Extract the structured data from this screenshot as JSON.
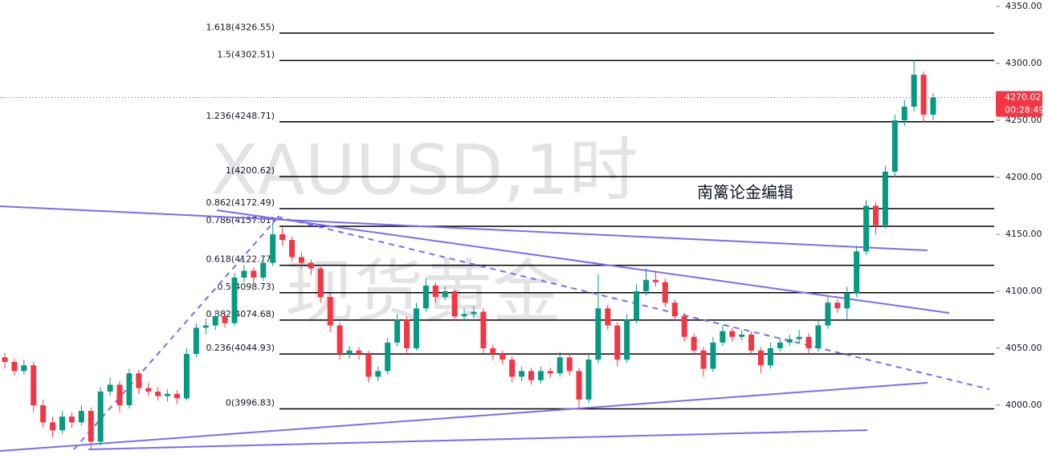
{
  "chart_data": {
    "type": "candlestick",
    "watermark": [
      "XAUUSD,1时",
      "现货黄金"
    ],
    "annotation": "南篱论金编辑",
    "up_color": "#089981",
    "down_color": "#f23645",
    "ylim": [
      3952.8,
      4355.6
    ],
    "yticks": [
      {
        "value": 4000,
        "label": "4000.00"
      },
      {
        "value": 4050,
        "label": "4050.00"
      },
      {
        "value": 4100,
        "label": "4100.00"
      },
      {
        "value": 4150,
        "label": "4150.00"
      },
      {
        "value": 4200,
        "label": "4200.00"
      },
      {
        "value": 4250,
        "label": "4250.00"
      },
      {
        "value": 4300,
        "label": "4300.00"
      },
      {
        "value": 4350,
        "label": "4350.00"
      }
    ],
    "fib_levels": [
      {
        "value": 4326.55,
        "label": "1.618(4326.55)"
      },
      {
        "value": 4302.51,
        "label": "1.5(4302.51)"
      },
      {
        "value": 4248.71,
        "label": "1.236(4248.71)"
      },
      {
        "value": 4200.62,
        "label": "1(4200.62)"
      },
      {
        "value": 4172.49,
        "label": "0.862(4172.49)"
      },
      {
        "value": 4157.01,
        "label": "0.786(4157.01)"
      },
      {
        "value": 4122.77,
        "label": "0.618(4122.77)"
      },
      {
        "value": 4098.73,
        "label": "0.5(4098.73)"
      },
      {
        "value": 4074.68,
        "label": "0.382(4074.68)"
      },
      {
        "value": 4044.93,
        "label": "0.236(4044.93)"
      },
      {
        "value": 3996.83,
        "label": "0(3996.83)"
      }
    ],
    "last_price": 4270.02,
    "countdown": "00:28:49",
    "candles": [
      [
        4042,
        4046,
        4032,
        4038
      ],
      [
        4038,
        4041,
        4026,
        4030
      ],
      [
        4030,
        4040,
        4027,
        4035
      ],
      [
        4035,
        4038,
        3994,
        4000
      ],
      [
        4000,
        4005,
        3980,
        3985
      ],
      [
        3985,
        3990,
        3972,
        3978
      ],
      [
        3978,
        3995,
        3975,
        3990
      ],
      [
        3990,
        3994,
        3980,
        3985
      ],
      [
        3985,
        4000,
        3982,
        3995
      ],
      [
        3995,
        3998,
        3962,
        3968
      ],
      [
        3968,
        4016,
        3965,
        4012
      ],
      [
        4012,
        4024,
        4008,
        4018
      ],
      [
        4018,
        4021,
        3994,
        4000
      ],
      [
        4000,
        4032,
        3997,
        4028
      ],
      [
        4028,
        4031,
        4010,
        4015
      ],
      [
        4015,
        4020,
        4008,
        4012
      ],
      [
        4012,
        4016,
        4004,
        4008
      ],
      [
        4008,
        4014,
        4003,
        4010
      ],
      [
        4010,
        4013,
        4001,
        4006
      ],
      [
        4006,
        4050,
        4004,
        4045
      ],
      [
        4045,
        4072,
        4042,
        4068
      ],
      [
        4068,
        4076,
        4062,
        4070
      ],
      [
        4070,
        4083,
        4066,
        4078
      ],
      [
        4078,
        4082,
        4068,
        4072
      ],
      [
        4072,
        4116,
        4070,
        4112
      ],
      [
        4112,
        4123,
        4108,
        4118
      ],
      [
        4118,
        4121,
        4106,
        4112
      ],
      [
        4112,
        4130,
        4109,
        4125
      ],
      [
        4125,
        4160,
        4122,
        4150
      ],
      [
        4150,
        4156,
        4140,
        4145
      ],
      [
        4145,
        4148,
        4126,
        4130
      ],
      [
        4130,
        4134,
        4120,
        4125
      ],
      [
        4125,
        4128,
        4114,
        4120
      ],
      [
        4120,
        4123,
        4090,
        4095
      ],
      [
        4095,
        4098,
        4064,
        4070
      ],
      [
        4070,
        4073,
        4040,
        4045
      ],
      [
        4045,
        4052,
        4041,
        4048
      ],
      [
        4048,
        4051,
        4040,
        4045
      ],
      [
        4045,
        4048,
        4020,
        4025
      ],
      [
        4025,
        4034,
        4021,
        4030
      ],
      [
        4030,
        4059,
        4027,
        4055
      ],
      [
        4055,
        4080,
        4052,
        4075
      ],
      [
        4075,
        4078,
        4046,
        4050
      ],
      [
        4050,
        4090,
        4048,
        4085
      ],
      [
        4085,
        4112,
        4082,
        4105
      ],
      [
        4105,
        4108,
        4090,
        4095
      ],
      [
        4095,
        4104,
        4092,
        4100
      ],
      [
        4100,
        4102,
        4074,
        4078
      ],
      [
        4078,
        4085,
        4074,
        4080
      ],
      [
        4080,
        4087,
        4076,
        4082
      ],
      [
        4082,
        4085,
        4046,
        4050
      ],
      [
        4050,
        4053,
        4040,
        4045
      ],
      [
        4045,
        4048,
        4036,
        4040
      ],
      [
        4040,
        4043,
        4020,
        4025
      ],
      [
        4025,
        4034,
        4021,
        4030
      ],
      [
        4030,
        4033,
        4018,
        4022
      ],
      [
        4022,
        4034,
        4019,
        4030
      ],
      [
        4030,
        4033,
        4024,
        4028
      ],
      [
        4028,
        4047,
        4025,
        4042
      ],
      [
        4042,
        4045,
        4026,
        4030
      ],
      [
        4030,
        4033,
        3997,
        4005
      ],
      [
        4005,
        4045,
        4002,
        4040
      ],
      [
        4040,
        4115,
        4037,
        4085
      ],
      [
        4085,
        4088,
        4066,
        4070
      ],
      [
        4070,
        4073,
        4034,
        4040
      ],
      [
        4040,
        4080,
        4037,
        4075
      ],
      [
        4075,
        4106,
        4072,
        4100
      ],
      [
        4100,
        4120,
        4096,
        4110
      ],
      [
        4110,
        4118,
        4104,
        4108
      ],
      [
        4108,
        4111,
        4086,
        4090
      ],
      [
        4090,
        4093,
        4074,
        4078
      ],
      [
        4078,
        4081,
        4056,
        4060
      ],
      [
        4060,
        4063,
        4044,
        4048
      ],
      [
        4048,
        4051,
        4025,
        4032
      ],
      [
        4032,
        4060,
        4029,
        4055
      ],
      [
        4055,
        4070,
        4052,
        4065
      ],
      [
        4065,
        4068,
        4056,
        4060
      ],
      [
        4060,
        4066,
        4057,
        4062
      ],
      [
        4062,
        4065,
        4044,
        4048
      ],
      [
        4048,
        4051,
        4028,
        4035
      ],
      [
        4035,
        4055,
        4032,
        4050
      ],
      [
        4050,
        4059,
        4047,
        4055
      ],
      [
        4055,
        4062,
        4052,
        4058
      ],
      [
        4058,
        4066,
        4055,
        4060
      ],
      [
        4060,
        4063,
        4046,
        4050
      ],
      [
        4050,
        4075,
        4047,
        4070
      ],
      [
        4070,
        4095,
        4067,
        4090
      ],
      [
        4090,
        4093,
        4081,
        4085
      ],
      [
        4085,
        4104,
        4075,
        4098
      ],
      [
        4098,
        4140,
        4095,
        4135
      ],
      [
        4135,
        4180,
        4132,
        4175
      ],
      [
        4175,
        4178,
        4150,
        4158
      ],
      [
        4158,
        4210,
        4155,
        4205
      ],
      [
        4205,
        4255,
        4200,
        4250
      ],
      [
        4250,
        4268,
        4245,
        4262
      ],
      [
        4262,
        4303,
        4258,
        4290
      ],
      [
        4290,
        4293,
        4248,
        4255
      ],
      [
        4255,
        4274,
        4250,
        4270.02
      ]
    ]
  }
}
